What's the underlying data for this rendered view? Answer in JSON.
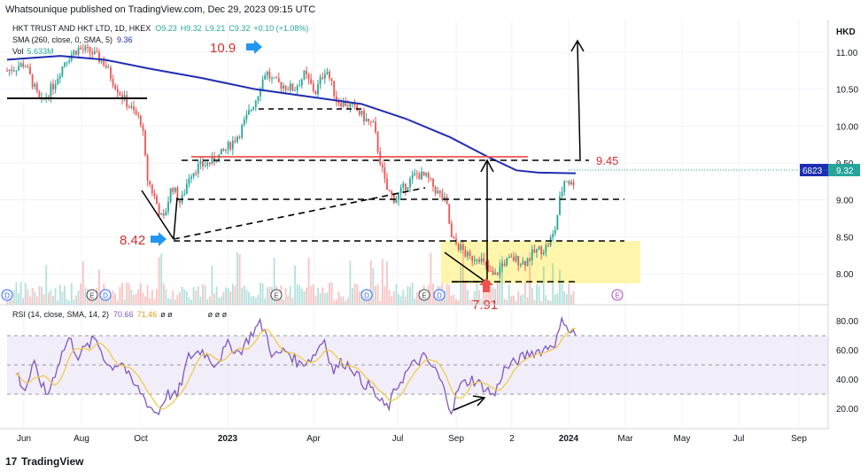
{
  "header": {
    "publisher": "Whatsounique published on TradingView.com, Dec 29, 2023 09:15 UTC"
  },
  "legend": {
    "symbol": "HKT TRUST AND HKT LTD, 1D, HKEX",
    "o": "O9.23",
    "h": "H9.32",
    "l": "L9.21",
    "c": "C9.32",
    "chg": "+0.10 (+1.08%)",
    "sma": "SMA (260, close, 0, SMA, 5)",
    "sma_val": "9.36",
    "vol": "Vol",
    "vol_val": "5.633M"
  },
  "currency": "HKD",
  "last_price": {
    "label": "6823",
    "value": "9.32"
  },
  "rsi_legend": {
    "label": "RSI (14, close, SMA, 14, 2)",
    "rsi": "70.66",
    "sma": "71.46",
    "extra": "ø ø",
    "extra2": "ø ø ø"
  },
  "annotations": {
    "high": "10.9",
    "low1": "8.42",
    "resist": "9.45",
    "low2": "7.91"
  },
  "events": [
    "D",
    "E",
    "D",
    "E",
    "D",
    "D",
    "E",
    "D",
    "D",
    "E"
  ],
  "branding": {
    "name": "TradingView"
  },
  "colors": {
    "up": "#26a69a",
    "down": "#ef5350",
    "sma": "#1e2db3",
    "rsi": "#7e57c2",
    "rsi_sma": "#f2c94c",
    "zone": "#fff59d",
    "label_red": "#d32f2f",
    "marker_blue": "#2196f3"
  },
  "chart_data": {
    "type": "candlestick",
    "x_ticks": [
      "Jun",
      "Aug",
      "Oct",
      "2023",
      "Apr",
      "Jul",
      "Sep",
      "2",
      "2024",
      "Mar",
      "May",
      "Jul",
      "Sep"
    ],
    "y_ticks": [
      "11.00",
      "10.50",
      "10.00",
      "9.50",
      "9.00",
      "8.50",
      "8.00"
    ],
    "y_range": [
      7.8,
      11.4
    ],
    "rsi_ticks": [
      "80.00",
      "60.00",
      "40.00",
      "20.00"
    ],
    "rsi_range": [
      8,
      90
    ],
    "rsi_levels": [
      70,
      50,
      30
    ],
    "close_path": [
      [
        0,
        10.75
      ],
      [
        20,
        10.85
      ],
      [
        38,
        10.3
      ],
      [
        52,
        10.55
      ],
      [
        66,
        10.9
      ],
      [
        80,
        11.05
      ],
      [
        95,
        11.0
      ],
      [
        110,
        10.85
      ],
      [
        120,
        10.6
      ],
      [
        130,
        10.4
      ],
      [
        142,
        10.2
      ],
      [
        152,
        10.05
      ],
      [
        158,
        9.3
      ],
      [
        166,
        9.05
      ],
      [
        176,
        8.7
      ],
      [
        186,
        9.2
      ],
      [
        196,
        8.95
      ],
      [
        206,
        9.35
      ],
      [
        216,
        9.45
      ],
      [
        228,
        9.5
      ],
      [
        240,
        9.6
      ],
      [
        252,
        9.75
      ],
      [
        262,
        9.9
      ],
      [
        272,
        10.15
      ],
      [
        282,
        10.4
      ],
      [
        292,
        10.75
      ],
      [
        300,
        10.6
      ],
      [
        312,
        10.55
      ],
      [
        324,
        10.5
      ],
      [
        336,
        10.7
      ],
      [
        348,
        10.45
      ],
      [
        360,
        10.8
      ],
      [
        372,
        10.35
      ],
      [
        384,
        10.3
      ],
      [
        396,
        10.2
      ],
      [
        408,
        10.05
      ],
      [
        414,
        10.0
      ],
      [
        420,
        9.6
      ],
      [
        428,
        9.15
      ],
      [
        438,
        9.0
      ],
      [
        450,
        9.2
      ],
      [
        462,
        9.35
      ],
      [
        474,
        9.3
      ],
      [
        486,
        9.1
      ],
      [
        496,
        8.95
      ],
      [
        502,
        8.45
      ],
      [
        512,
        8.35
      ],
      [
        522,
        8.2
      ],
      [
        532,
        8.25
      ],
      [
        542,
        8.05
      ],
      [
        550,
        7.95
      ],
      [
        560,
        8.15
      ],
      [
        572,
        8.2
      ],
      [
        584,
        8.15
      ],
      [
        596,
        8.3
      ],
      [
        608,
        8.35
      ],
      [
        618,
        8.55
      ],
      [
        624,
        9.0
      ],
      [
        630,
        9.3
      ],
      [
        638,
        9.2
      ],
      [
        642,
        9.32
      ]
    ],
    "sma_path": [
      [
        0,
        10.9
      ],
      [
        60,
        10.95
      ],
      [
        110,
        10.9
      ],
      [
        160,
        10.78
      ],
      [
        220,
        10.65
      ],
      [
        280,
        10.5
      ],
      [
        340,
        10.4
      ],
      [
        400,
        10.3
      ],
      [
        450,
        10.1
      ],
      [
        500,
        9.85
      ],
      [
        540,
        9.6
      ],
      [
        575,
        9.4
      ],
      [
        600,
        9.37
      ],
      [
        642,
        9.36
      ]
    ],
    "rsi_path": [
      [
        10,
        45
      ],
      [
        20,
        32
      ],
      [
        30,
        50
      ],
      [
        45,
        28
      ],
      [
        60,
        55
      ],
      [
        70,
        68
      ],
      [
        80,
        56
      ],
      [
        90,
        62
      ],
      [
        100,
        68
      ],
      [
        115,
        48
      ],
      [
        130,
        52
      ],
      [
        140,
        38
      ],
      [
        150,
        32
      ],
      [
        160,
        22
      ],
      [
        170,
        16
      ],
      [
        180,
        30
      ],
      [
        192,
        28
      ],
      [
        205,
        55
      ],
      [
        220,
        60
      ],
      [
        235,
        50
      ],
      [
        250,
        64
      ],
      [
        262,
        58
      ],
      [
        275,
        70
      ],
      [
        285,
        78
      ],
      [
        292,
        72
      ],
      [
        300,
        55
      ],
      [
        315,
        60
      ],
      [
        330,
        50
      ],
      [
        345,
        55
      ],
      [
        358,
        68
      ],
      [
        368,
        45
      ],
      [
        378,
        52
      ],
      [
        390,
        48
      ],
      [
        400,
        38
      ],
      [
        410,
        35
      ],
      [
        420,
        25
      ],
      [
        430,
        20
      ],
      [
        440,
        35
      ],
      [
        455,
        48
      ],
      [
        470,
        55
      ],
      [
        485,
        45
      ],
      [
        495,
        30
      ],
      [
        502,
        18
      ],
      [
        510,
        35
      ],
      [
        525,
        40
      ],
      [
        540,
        34
      ],
      [
        550,
        28
      ],
      [
        560,
        46
      ],
      [
        575,
        52
      ],
      [
        590,
        58
      ],
      [
        605,
        60
      ],
      [
        620,
        66
      ],
      [
        628,
        82
      ],
      [
        636,
        72
      ],
      [
        642,
        71
      ]
    ]
  }
}
